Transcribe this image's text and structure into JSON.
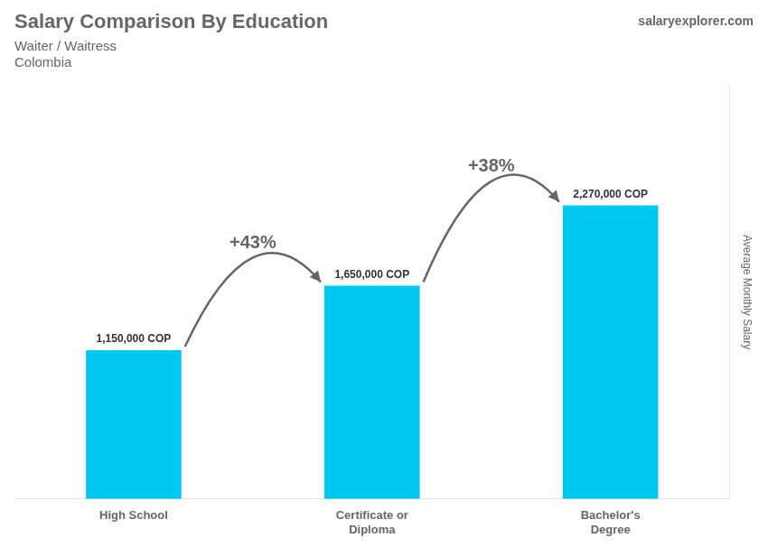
{
  "chart_data": {
    "type": "bar",
    "title": "Salary Comparison By Education",
    "subtitle": [
      "Waiter / Waitress",
      "Colombia"
    ],
    "source": "salaryexplorer.com",
    "categories": [
      "High School",
      "Certificate or\nDiploma",
      "Bachelor's\nDegree"
    ],
    "values": [
      1150000,
      1650000,
      2270000
    ],
    "value_labels": [
      "1,150,000 COP",
      "1,650,000 COP",
      "2,270,000 COP"
    ],
    "data_labels": true,
    "annotations": [
      "+43%",
      "+38%"
    ],
    "color": "#00c8f0",
    "ylabel": "Average Monthly Salary",
    "ylim": [
      0,
      3200000
    ],
    "grid": false,
    "tick_labels": "x"
  }
}
